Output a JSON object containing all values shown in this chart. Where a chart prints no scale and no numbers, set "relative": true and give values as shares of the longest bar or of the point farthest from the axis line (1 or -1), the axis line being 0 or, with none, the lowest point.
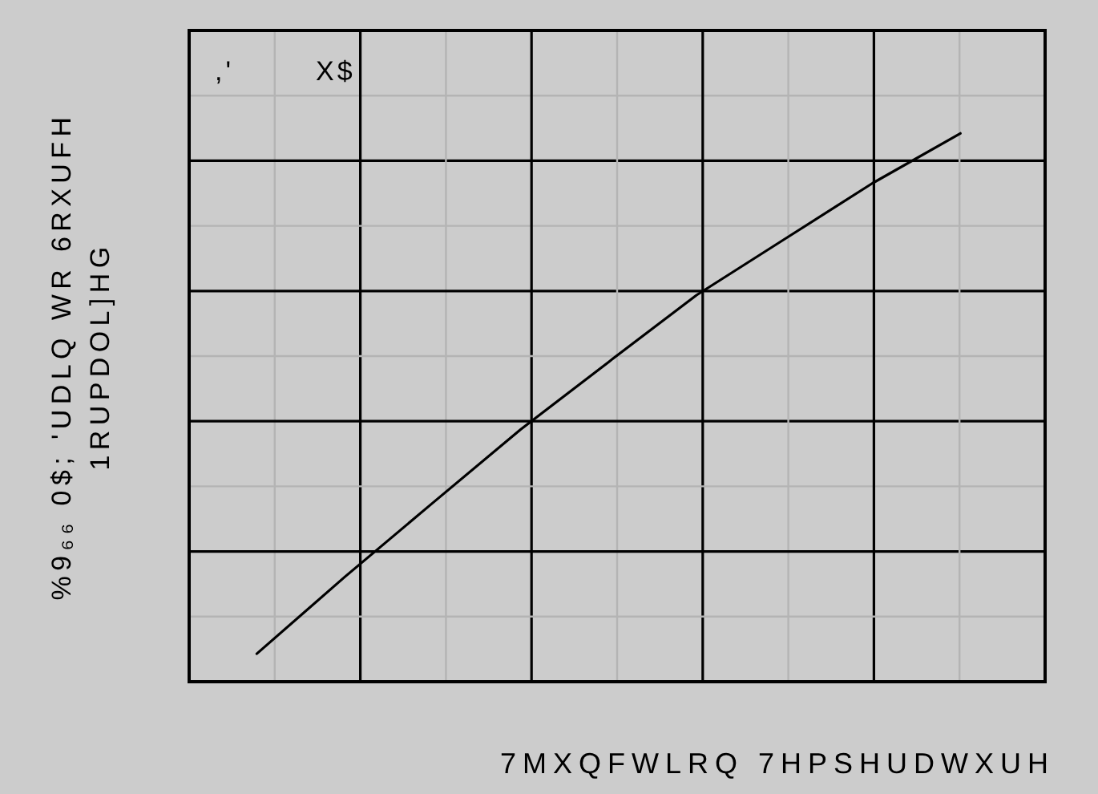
{
  "chart_data": {
    "type": "line",
    "relative": true,
    "xlabel": "7MXQFWLRQ 7HPSHUDWXUH",
    "ylabel": "%9₆₆ 0$; 'UDLQ WR 6RXUFH\n1RUPDOL]HG",
    "annotations": [
      ",'",
      "X$"
    ],
    "categories": [
      null,
      null,
      null,
      null,
      null,
      null,
      null,
      null,
      null
    ],
    "series": [
      {
        "color": "#000000",
        "values": [
          0.051,
          0.191,
          0.326,
          0.46,
          0.583,
          0.705,
          0.807,
          0.909,
          1
        ]
      }
    ],
    "grid": true,
    "marker": "none",
    "line_style": "solid"
  }
}
